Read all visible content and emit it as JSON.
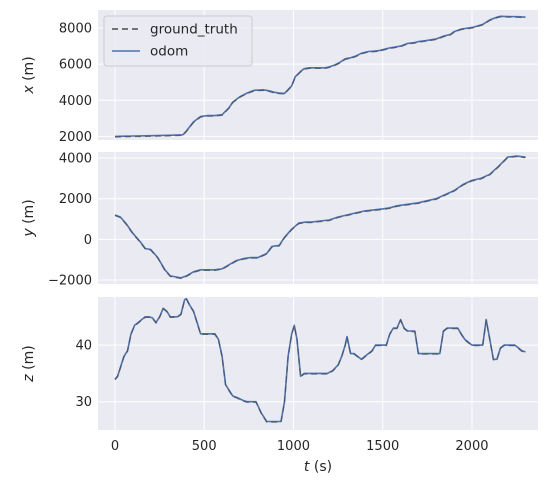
{
  "chart_data": {
    "type": "line",
    "x_axis": {
      "label_var": "t",
      "label_unit": " (s)",
      "ticks": [
        0,
        500,
        1000,
        1500,
        2000
      ],
      "range": [
        -95,
        2370
      ]
    },
    "legend": {
      "placement": "top-left",
      "entries": [
        {
          "label": "ground_truth",
          "color": "#4c4c4c",
          "dash": "6,4"
        },
        {
          "label": "odom",
          "color": "#4c72b0",
          "dash": ""
        }
      ]
    },
    "grid": true,
    "panels": [
      {
        "ylabel_var": "x",
        "ylabel_unit": " (m)",
        "yticks": [
          2000,
          4000,
          6000,
          8000
        ],
        "ylim": [
          1800,
          9000
        ],
        "t": [
          0,
          50,
          100,
          200,
          300,
          380,
          400,
          440,
          480,
          520,
          560,
          600,
          640,
          660,
          700,
          740,
          780,
          830,
          860,
          890,
          920,
          950,
          990,
          1010,
          1040,
          1060,
          1090,
          1120,
          1150,
          1180,
          1200,
          1230,
          1260,
          1290,
          1320,
          1350,
          1380,
          1420,
          1450,
          1480,
          1500,
          1540,
          1570,
          1600,
          1640,
          1680,
          1700,
          1740,
          1770,
          1800,
          1840,
          1880,
          1900,
          1940,
          1980,
          2010,
          2060,
          2100,
          2140,
          2160,
          2200,
          2260,
          2300
        ],
        "y": [
          2000,
          2010,
          2020,
          2040,
          2060,
          2090,
          2300,
          2800,
          3100,
          3150,
          3150,
          3200,
          3600,
          3900,
          4200,
          4400,
          4550,
          4580,
          4530,
          4450,
          4400,
          4380,
          4800,
          5300,
          5600,
          5750,
          5800,
          5800,
          5800,
          5800,
          5850,
          5950,
          6100,
          6300,
          6350,
          6450,
          6600,
          6700,
          6720,
          6750,
          6800,
          6900,
          6950,
          7000,
          7150,
          7200,
          7250,
          7300,
          7350,
          7400,
          7550,
          7650,
          7800,
          7950,
          8000,
          8050,
          8200,
          8450,
          8600,
          8650,
          8640,
          8630,
          8600
        ]
      },
      {
        "ylabel_var": "y",
        "ylabel_unit": " (m)",
        "yticks": [
          -2000,
          0,
          2000,
          4000
        ],
        "ylim": [
          -2200,
          4300
        ],
        "t": [
          0,
          30,
          60,
          100,
          140,
          170,
          200,
          240,
          280,
          310,
          340,
          370,
          400,
          440,
          480,
          520,
          560,
          600,
          640,
          680,
          720,
          760,
          800,
          850,
          880,
          920,
          950,
          990,
          1030,
          1070,
          1100,
          1150,
          1200,
          1250,
          1300,
          1350,
          1400,
          1450,
          1500,
          1540,
          1580,
          1620,
          1660,
          1700,
          1750,
          1800,
          1850,
          1900,
          1950,
          2000,
          2050,
          2100,
          2150,
          2200,
          2250,
          2300
        ],
        "y": [
          1200,
          1100,
          800,
          300,
          -100,
          -450,
          -500,
          -900,
          -1500,
          -1800,
          -1850,
          -1900,
          -1800,
          -1600,
          -1500,
          -1500,
          -1500,
          -1450,
          -1250,
          -1050,
          -950,
          -900,
          -900,
          -700,
          -350,
          -300,
          100,
          500,
          800,
          850,
          850,
          900,
          950,
          1100,
          1200,
          1300,
          1400,
          1450,
          1500,
          1550,
          1650,
          1700,
          1750,
          1800,
          1900,
          2000,
          2200,
          2400,
          2700,
          2900,
          3000,
          3200,
          3600,
          4050,
          4100,
          4050
        ]
      },
      {
        "ylabel_var": "z",
        "ylabel_unit": " (m)",
        "yticks": [
          30,
          40
        ],
        "ylim": [
          25,
          48.5
        ],
        "t": [
          0,
          15,
          30,
          50,
          70,
          90,
          110,
          130,
          150,
          170,
          190,
          210,
          230,
          250,
          270,
          290,
          310,
          330,
          350,
          370,
          390,
          400,
          420,
          440,
          460,
          480,
          500,
          520,
          540,
          560,
          580,
          600,
          620,
          640,
          660,
          680,
          700,
          720,
          740,
          760,
          790,
          820,
          850,
          870,
          890,
          910,
          930,
          950,
          970,
          990,
          1005,
          1020,
          1040,
          1060,
          1080,
          1100,
          1130,
          1160,
          1190,
          1220,
          1250,
          1270,
          1290,
          1300,
          1310,
          1320,
          1340,
          1360,
          1380,
          1400,
          1420,
          1440,
          1460,
          1480,
          1500,
          1520,
          1540,
          1560,
          1580,
          1600,
          1620,
          1640,
          1660,
          1680,
          1700,
          1720,
          1740,
          1760,
          1780,
          1800,
          1820,
          1840,
          1860,
          1880,
          1900,
          1920,
          1940,
          1960,
          1980,
          2000,
          2020,
          2040,
          2060,
          2080,
          2100,
          2120,
          2140,
          2160,
          2180,
          2200,
          2220,
          2240,
          2260,
          2280,
          2300
        ],
        "y": [
          34,
          34.5,
          36,
          38,
          39,
          42,
          43.5,
          44,
          44.5,
          45,
          45,
          44.8,
          44,
          45,
          46.5,
          46,
          45,
          45,
          45,
          45.5,
          48,
          48.2,
          47,
          46,
          44,
          42,
          42,
          42,
          42,
          42,
          41,
          38,
          33,
          32,
          31,
          30.8,
          30.5,
          30.2,
          30,
          30,
          30,
          28,
          26.5,
          26.5,
          26.5,
          26.5,
          26.5,
          30,
          38,
          42,
          43.5,
          41,
          34.5,
          35,
          35,
          35,
          35,
          35,
          35,
          35.5,
          36.5,
          38,
          40,
          41.5,
          40,
          38.5,
          38.5,
          38,
          37.5,
          38,
          38.5,
          39,
          40,
          40,
          40,
          40,
          42,
          43,
          43,
          44.5,
          43,
          42.5,
          42.5,
          42.5,
          38.5,
          38.5,
          38.5,
          38.5,
          38.5,
          38.5,
          38.5,
          42.5,
          43,
          43,
          43,
          43,
          42,
          41,
          40.5,
          40,
          40,
          40,
          40,
          44.5,
          41,
          37.5,
          37.5,
          39.5,
          40,
          40,
          40,
          40,
          39.5,
          39,
          38.8
        ]
      }
    ]
  }
}
